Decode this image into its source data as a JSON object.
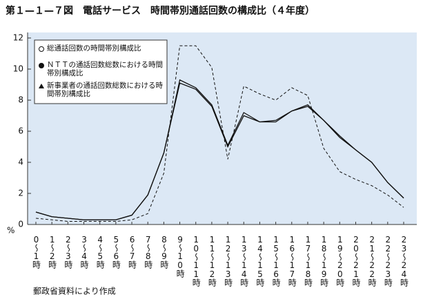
{
  "chart_data": {
    "type": "line",
    "title": "第１—１—７図　電話サービス　時間帯別通話回数の構成比（４年度）",
    "y_unit": "%",
    "source": "郵政省資料により作成",
    "categories": [
      "0〜1時",
      "1〜2時",
      "2〜3時",
      "3〜4時",
      "4〜5時",
      "5〜6時",
      "6〜7時",
      "7〜8時",
      "8〜9時",
      "9〜10時",
      "10〜11時",
      "11〜12時",
      "12〜13時",
      "13〜14時",
      "14〜15時",
      "15〜16時",
      "16〜17時",
      "17〜18時",
      "18〜19時",
      "19〜20時",
      "20〜21時",
      "21〜22時",
      "22〜23時",
      "23〜24時"
    ],
    "series": [
      {
        "name": "総通話回数の時間帯別構成比",
        "color": "#111111",
        "marker": "open-circle",
        "dash": false,
        "values": [
          0.8,
          0.5,
          0.4,
          0.3,
          0.3,
          0.3,
          0.6,
          1.9,
          4.6,
          9.3,
          8.8,
          7.7,
          5.1,
          7.2,
          6.6,
          6.7,
          7.3,
          7.6,
          6.7,
          5.7,
          4.8,
          4.0,
          2.7,
          1.7
        ]
      },
      {
        "name": "ＮＴＴの通話回数総数における時間帯別構成比",
        "color": "#111111",
        "marker": "filled-circle",
        "dash": false,
        "values": [
          0.8,
          0.5,
          0.4,
          0.3,
          0.3,
          0.3,
          0.6,
          1.9,
          4.6,
          9.1,
          8.7,
          7.6,
          5.0,
          7.0,
          6.6,
          6.6,
          7.3,
          7.7,
          6.7,
          5.6,
          4.8,
          4.0,
          2.7,
          1.7
        ]
      },
      {
        "name": "新事業者の通話回数総数における時間帯別構成比",
        "color": "#111111",
        "marker": "triangle",
        "dash": true,
        "values": [
          0.4,
          0.3,
          0.2,
          0.2,
          0.2,
          0.2,
          0.3,
          0.7,
          3.3,
          11.5,
          11.5,
          10.1,
          4.2,
          8.9,
          8.4,
          8.0,
          8.8,
          8.3,
          4.9,
          3.4,
          2.9,
          2.5,
          1.9,
          1.1
        ]
      }
    ],
    "ylim": [
      0,
      12
    ],
    "yticks": [
      0,
      2,
      4,
      6,
      8,
      10,
      12
    ],
    "plot_background": "#dce8f5"
  }
}
